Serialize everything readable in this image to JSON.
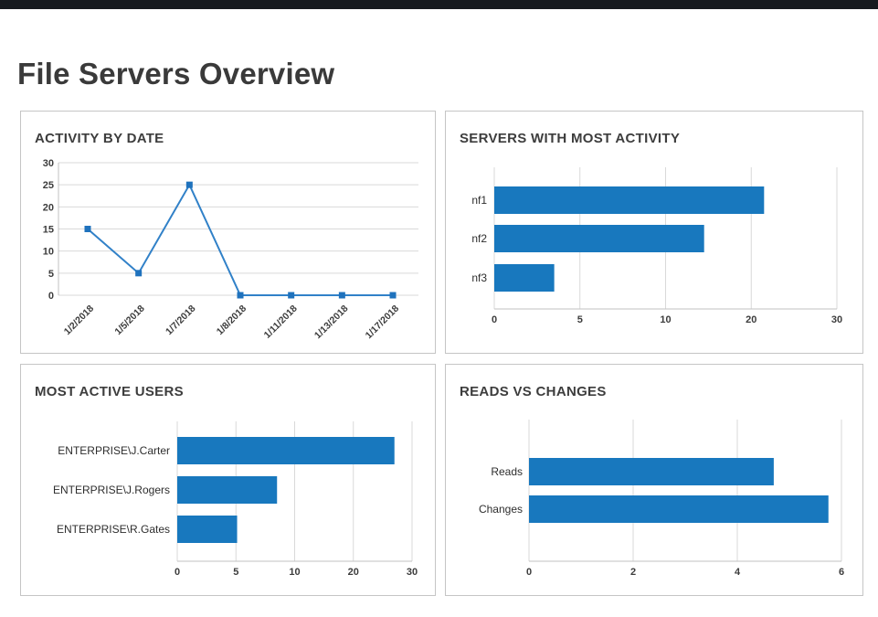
{
  "page": {
    "title": "File Servers Overview"
  },
  "colors": {
    "bar": "#1878be",
    "line": "#3181c8",
    "marker": "#1f72bd",
    "grid": "#d9d9d9",
    "axis": "#c2c2c2",
    "tick_text": "#3c3c3c",
    "label_text": "#2d2d2d",
    "topbar": "#171a1f"
  },
  "chart_data": [
    {
      "type": "line",
      "title": "ACTIVITY BY DATE",
      "x": [
        "1/2/2018",
        "1/5/2018",
        "1/7/2018",
        "1/8/2018",
        "1/11/2018",
        "1/13/2018",
        "1/17/2018"
      ],
      "values": [
        15,
        5,
        25,
        0,
        0,
        0,
        0
      ],
      "yticks": [
        0,
        5,
        10,
        15,
        20,
        25,
        30
      ],
      "ylim": [
        0,
        30
      ],
      "grid": "horizontal",
      "marker": "square",
      "legend": "none"
    },
    {
      "type": "bar",
      "orientation": "horizontal",
      "title": "SERVERS WITH MOST ACTIVITY",
      "categories": [
        "nf1",
        "nf2",
        "nf3"
      ],
      "values": [
        21.5,
        14.5,
        3.5
      ],
      "xticks": [
        0,
        5,
        10,
        20,
        30
      ],
      "tick_spacing": "equal",
      "grid": "vertical",
      "legend": "none"
    },
    {
      "type": "bar",
      "orientation": "horizontal",
      "title": "MOST ACTIVE USERS",
      "categories": [
        "ENTERPRISE\\J.Carter",
        "ENTERPRISE\\J.Rogers",
        "ENTERPRISE\\R.Gates"
      ],
      "values": [
        27,
        8.5,
        5.1
      ],
      "xticks": [
        0,
        5,
        10,
        20,
        30
      ],
      "tick_spacing": "equal",
      "grid": "vertical",
      "legend": "none"
    },
    {
      "type": "bar",
      "orientation": "horizontal",
      "title": "READS VS CHANGES",
      "categories": [
        "Reads",
        "Changes"
      ],
      "values": [
        4.7,
        5.75
      ],
      "xticks": [
        0,
        2,
        4,
        6
      ],
      "tick_spacing": "equal",
      "grid": "vertical",
      "legend": "none"
    }
  ]
}
